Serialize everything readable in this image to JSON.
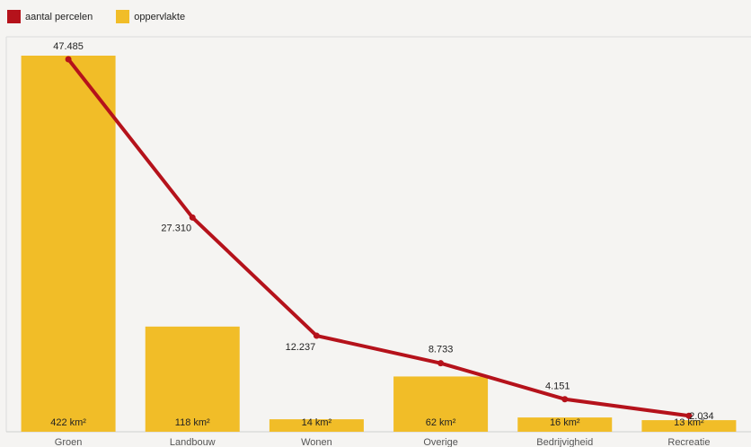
{
  "legend": {
    "line_label": "aantal percelen",
    "bar_label": "oppervlakte",
    "line_color": "#b5121b",
    "bar_color": "#f1bd28"
  },
  "chart_data": {
    "type": "bar",
    "categories": [
      "Groen",
      "Landbouw",
      "Wonen",
      "Overige",
      "Bedrijvigheid",
      "Recreatie"
    ],
    "series": [
      {
        "name": "oppervlakte",
        "type": "bar",
        "values": [
          422,
          118,
          14,
          62,
          16,
          13
        ],
        "labels": [
          "422 km²",
          "118 km²",
          "14 km²",
          "62 km²",
          "16 km²",
          "13 km²"
        ],
        "color": "#f1bd28"
      },
      {
        "name": "aantal percelen",
        "type": "line",
        "values": [
          47485,
          27310,
          12237,
          8733,
          4151,
          2034
        ],
        "labels": [
          "47.485",
          "27.310",
          "12.237",
          "8.733",
          "4.151",
          "2.034"
        ],
        "color": "#b5121b"
      }
    ],
    "grid": false,
    "legend_position": "top-left"
  }
}
